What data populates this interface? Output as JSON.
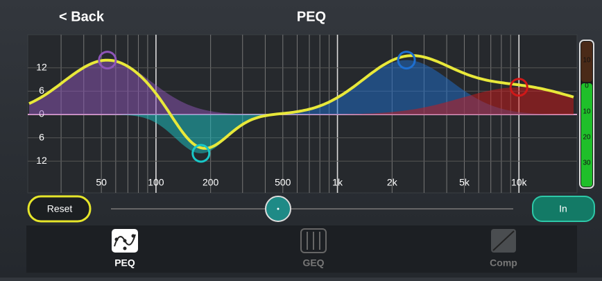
{
  "header": {
    "back": "< Back",
    "title": "PEQ"
  },
  "graph": {
    "log_x": true,
    "xlim": [
      20,
      20000
    ],
    "ylim": [
      -20,
      20
    ],
    "xticks": [
      50,
      100,
      200,
      500,
      {
        "value": 1000,
        "label": "1k"
      },
      {
        "value": 2000,
        "label": "2k"
      },
      {
        "value": 5000,
        "label": "5k"
      },
      {
        "value": 10000,
        "label": "10k"
      }
    ],
    "xgrid": [
      30,
      40,
      50,
      60,
      70,
      80,
      90,
      100,
      200,
      300,
      400,
      500,
      600,
      700,
      800,
      900,
      1000,
      2000,
      3000,
      4000,
      5000,
      6000,
      7000,
      8000,
      9000,
      10000
    ],
    "major_grid": [
      100,
      1000,
      10000
    ],
    "yticks": [
      12,
      6,
      0,
      {
        "value": -6,
        "label": "6"
      },
      {
        "value": -12,
        "label": "12"
      }
    ],
    "bands": [
      {
        "freq": 54,
        "gain": 14,
        "color": "#8e55b8"
      },
      {
        "freq": 177,
        "gain": -10,
        "color": "#19c8c8"
      },
      {
        "freq": 2400,
        "gain": 14,
        "color": "#1e6fd0"
      },
      {
        "freq": 10000,
        "gain": 7,
        "color": "#d01818"
      }
    ],
    "curve_color": "#e8e83a"
  },
  "meter": {
    "labels": [
      "10",
      "0",
      "10",
      "20",
      "30"
    ]
  },
  "controls": {
    "reset": "Reset",
    "in": "In"
  },
  "tabs": [
    {
      "label": "PEQ",
      "active": true
    },
    {
      "label": "GEQ",
      "active": false
    },
    {
      "label": "Comp",
      "active": false
    }
  ]
}
